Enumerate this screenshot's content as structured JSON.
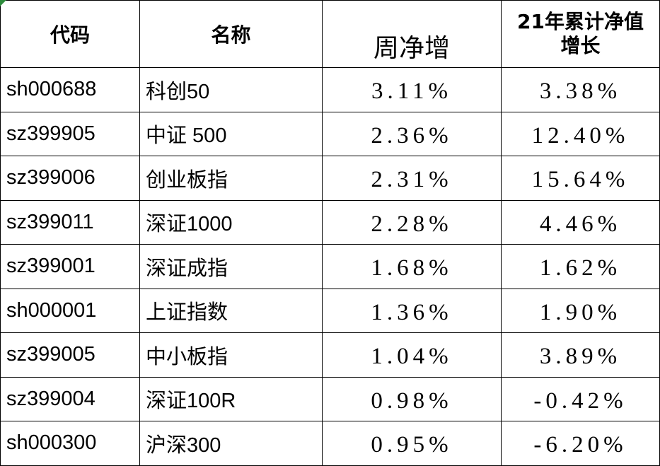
{
  "table": {
    "header": [
      "代码",
      "名称",
      "周净增",
      "21年累计净值增长"
    ],
    "rows": [
      [
        "sh000688",
        "科创50",
        "3.11%",
        "3.38%"
      ],
      [
        "sz399905",
        "中证 500",
        "2.36%",
        "12.40%"
      ],
      [
        "sz399006",
        "创业板指",
        "2.31%",
        "15.64%"
      ],
      [
        "sz399011",
        "深证1000",
        "2.28%",
        "4.46%"
      ],
      [
        "sz399001",
        "深证成指",
        "1.68%",
        "1.62%"
      ],
      [
        "sh000001",
        "上证指数",
        "1.36%",
        "1.90%"
      ],
      [
        "sz399005",
        "中小板指",
        "1.04%",
        "3.89%"
      ],
      [
        "sz399004",
        "深证100R",
        "0.98%",
        "-0.42%"
      ],
      [
        "sh000300",
        "沪深300",
        "0.95%",
        "-6.20%"
      ]
    ]
  }
}
